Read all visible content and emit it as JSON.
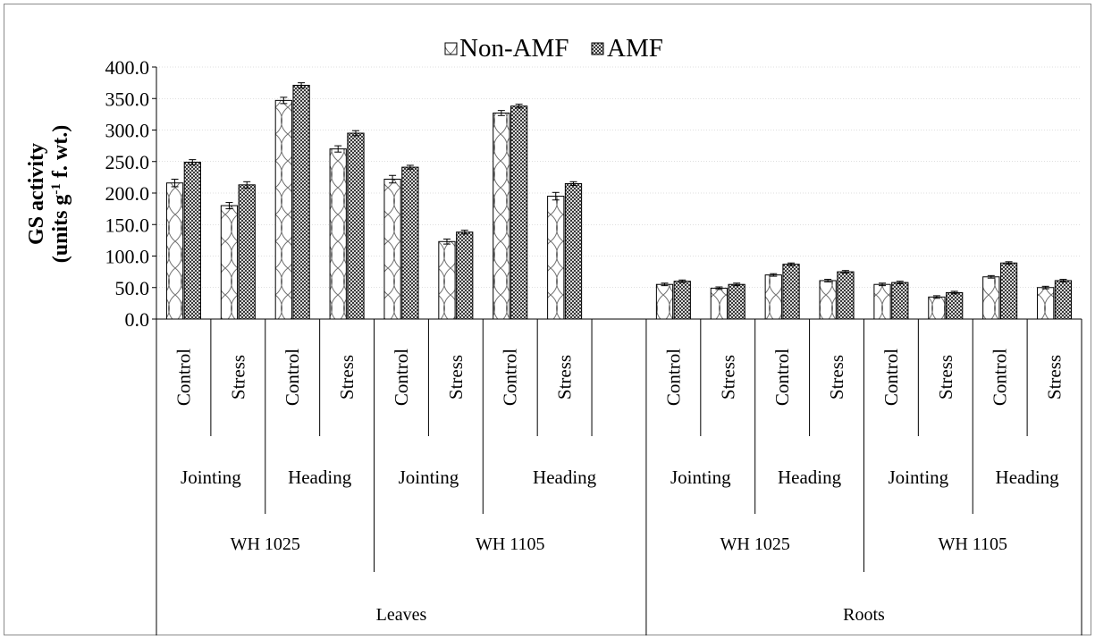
{
  "chart_data": {
    "type": "bar",
    "title": "",
    "ylabel_line1": "GS activity",
    "ylabel_line2_pre": "(units g",
    "ylabel_sup": "-1",
    "ylabel_line2_post": " f. wt.)",
    "ylim": [
      0,
      400
    ],
    "yticks": [
      0,
      50,
      100,
      150,
      200,
      250,
      300,
      350,
      400
    ],
    "ytick_labels": [
      "0.0",
      "50.0",
      "100.0",
      "150.0",
      "200.0",
      "250.0",
      "300.0",
      "350.0",
      "400.0"
    ],
    "legend": {
      "position": "top-center",
      "items": [
        "Non-AMF",
        "AMF"
      ]
    },
    "categories": [
      "Control",
      "Stress",
      "Control",
      "Stress",
      "Control",
      "Stress",
      "Control",
      "Stress",
      "",
      "Control",
      "Stress",
      "Control",
      "Stress",
      "Control",
      "Stress",
      "Control",
      "Stress"
    ],
    "stage_labels": [
      {
        "text": "Jointing",
        "from": 0,
        "to": 2
      },
      {
        "text": "Heading",
        "from": 2,
        "to": 4
      },
      {
        "text": "Jointing",
        "from": 4,
        "to": 6
      },
      {
        "text": "Heading",
        "from": 6,
        "to": 9
      },
      {
        "text": "Jointing",
        "from": 9,
        "to": 11
      },
      {
        "text": "Heading",
        "from": 11,
        "to": 13
      },
      {
        "text": "Jointing",
        "from": 13,
        "to": 15
      },
      {
        "text": "Heading",
        "from": 15,
        "to": 17
      }
    ],
    "cultivar_labels": [
      {
        "text": "WH 1025",
        "from": 0,
        "to": 4
      },
      {
        "text": "WH 1105",
        "from": 4,
        "to": 9
      },
      {
        "text": "WH 1025",
        "from": 9,
        "to": 13
      },
      {
        "text": "WH 1105",
        "from": 13,
        "to": 17
      }
    ],
    "tissue_labels": [
      {
        "text": "Leaves",
        "from": 0,
        "to": 9
      },
      {
        "text": "Roots",
        "from": 9,
        "to": 17
      }
    ],
    "series": [
      {
        "name": "Non-AMF",
        "values": [
          216,
          180,
          347,
          270,
          222,
          123,
          327,
          195,
          null,
          55,
          49,
          70,
          61,
          55,
          35,
          67,
          50
        ],
        "errors": [
          6,
          5,
          5,
          5,
          6,
          4,
          4,
          6,
          null,
          2,
          2,
          2,
          2,
          2,
          2,
          2,
          2
        ]
      },
      {
        "name": "AMF",
        "values": [
          249,
          213,
          371,
          295,
          241,
          138,
          338,
          215,
          null,
          60,
          55,
          87,
          75,
          58,
          42,
          89,
          61
        ],
        "errors": [
          4,
          5,
          4,
          4,
          3,
          3,
          3,
          3,
          null,
          2,
          2,
          2,
          2,
          2,
          2,
          2,
          2
        ]
      }
    ],
    "colors": {
      "bar_stroke": "#000000",
      "grid": "#bfbfbf",
      "frame": "#8a8a8a"
    }
  }
}
